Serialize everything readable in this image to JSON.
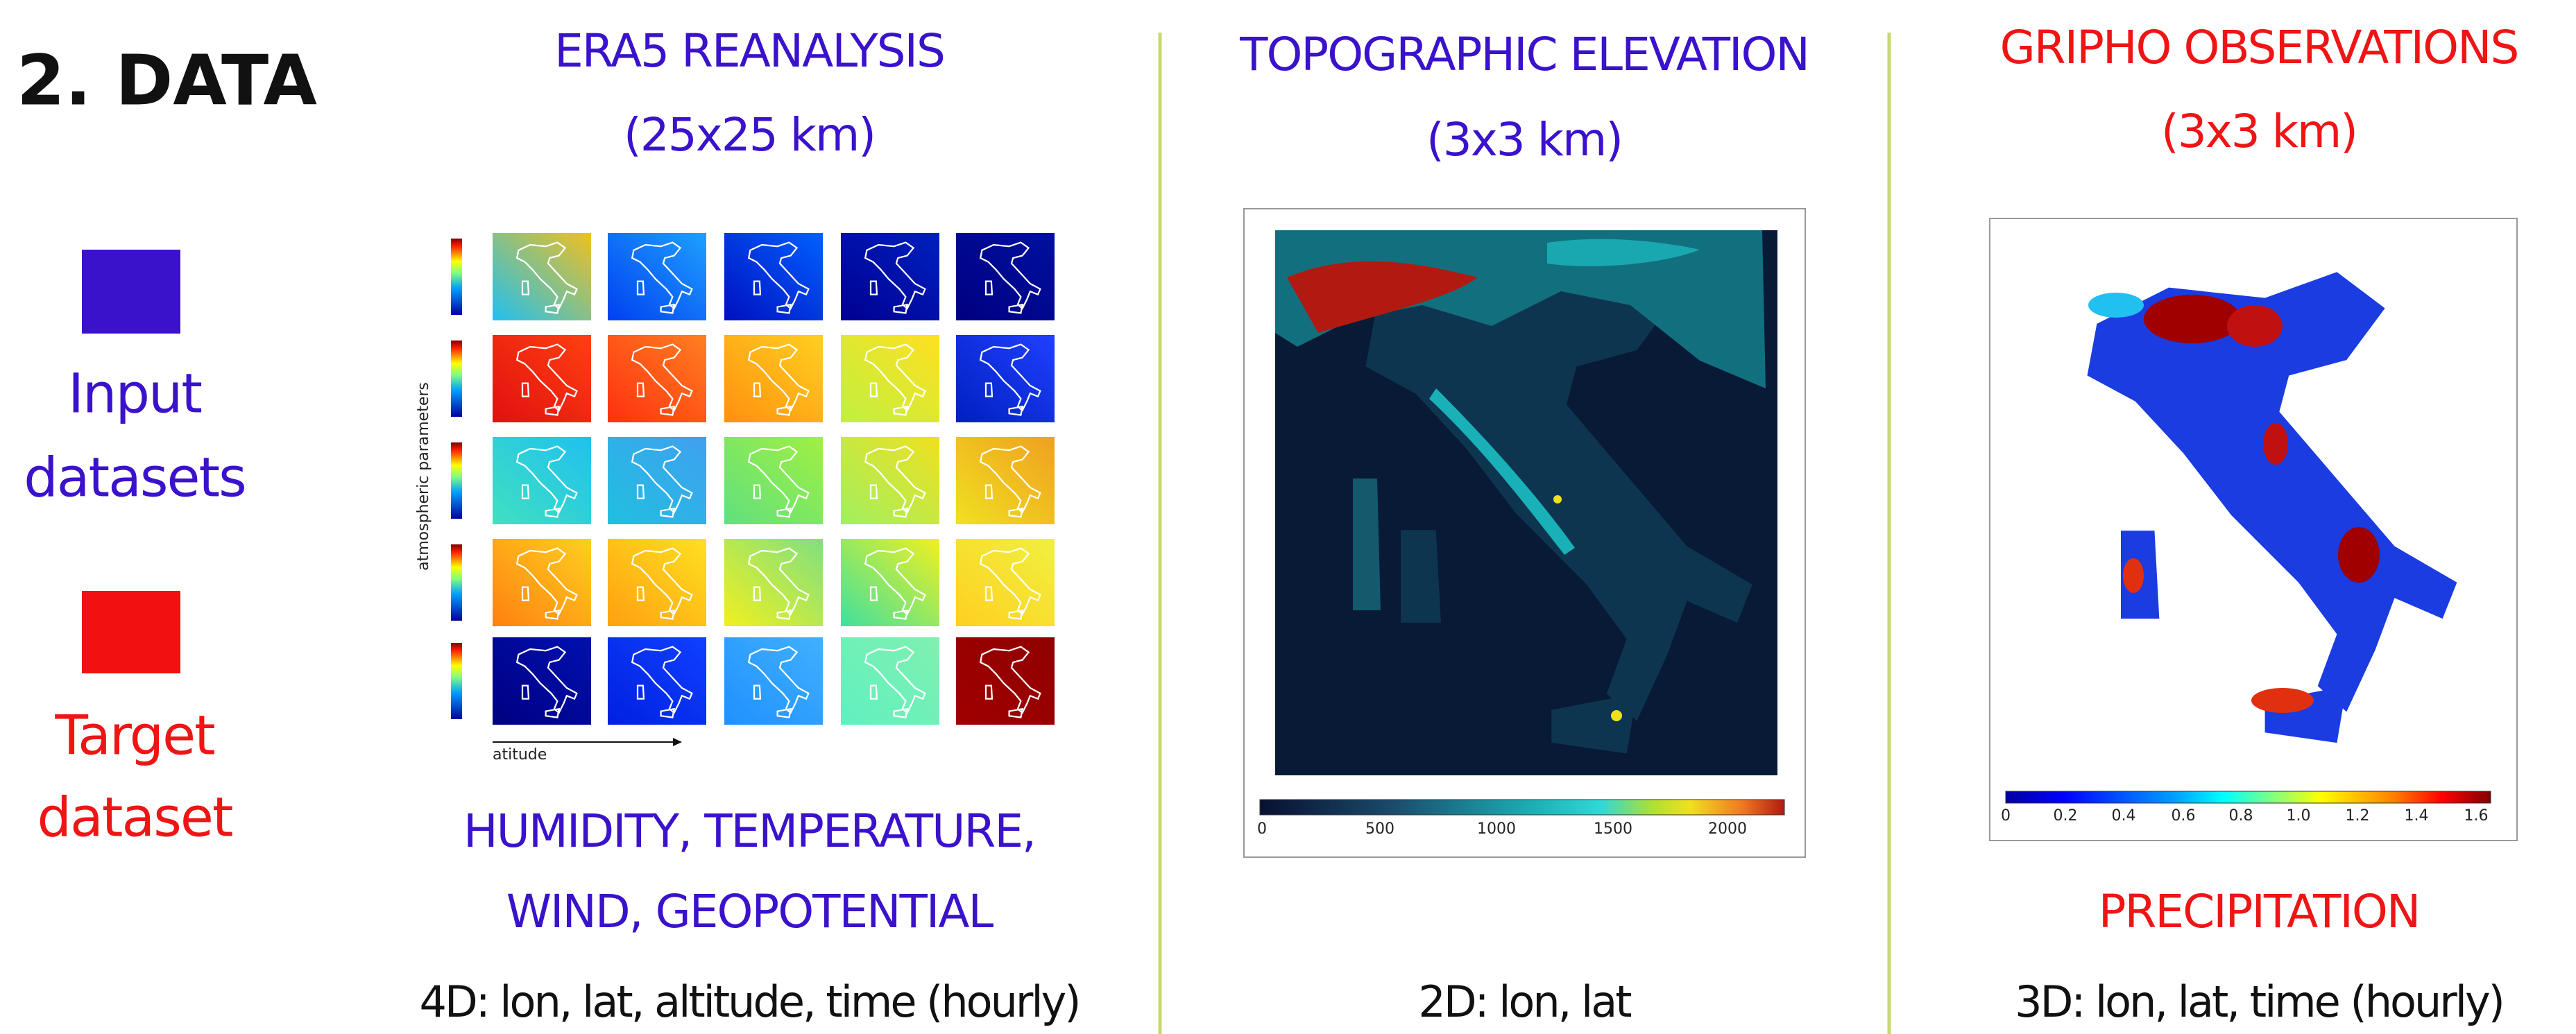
{
  "header": {
    "title": "2. DATA"
  },
  "legend": {
    "items": [
      {
        "label_lines": [
          "Input",
          "datasets"
        ]
      },
      {
        "label_lines": [
          "Target",
          "dataset"
        ]
      }
    ]
  },
  "panels": [
    {
      "title": "ERA5 REANALYSIS",
      "subtitle": "(25x25 km)",
      "figure": {
        "y_label": "atmospheric parameters",
        "x_label": "atitude"
      },
      "caption_lines": [
        "HUMIDITY, TEMPERATURE,",
        "WIND, GEOPOTENTIAL"
      ],
      "dimensions": "4D: lon, lat, altitude, time (hourly)"
    },
    {
      "title": "TOPOGRAPHIC ELEVATION",
      "subtitle": "(3x3 km)",
      "figure": {
        "colorbar_ticks": [
          "0",
          "500",
          "1000",
          "1500",
          "2000"
        ]
      },
      "dimensions": "2D: lon, lat"
    },
    {
      "title": "GRIPHO OBSERVATIONS",
      "subtitle": "(3x3 km)",
      "figure": {
        "colorbar_ticks": [
          "0",
          "0.2",
          "0.4",
          "0.6",
          "0.8",
          "1.0",
          "1.2",
          "1.4",
          "1.6"
        ]
      },
      "caption_lines": [
        "PRECIPITATION"
      ],
      "dimensions": "3D: lon, lat, time (hourly)"
    }
  ]
}
